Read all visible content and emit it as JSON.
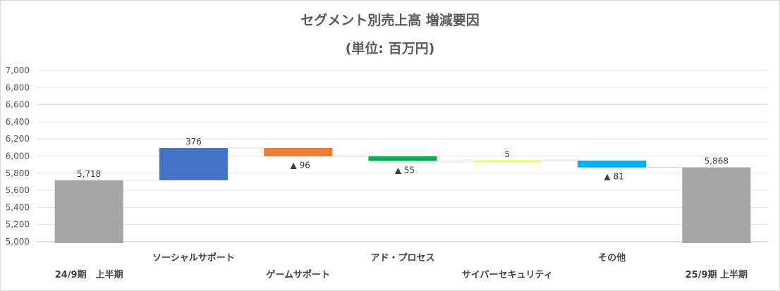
{
  "chart_data": {
    "type": "waterfall",
    "title": [
      "セグメント別売上高 増減要因",
      "(単位: 百万円)"
    ],
    "ylim": [
      5000,
      7000
    ],
    "yticks": [
      5000,
      5200,
      5400,
      5600,
      5800,
      6000,
      6200,
      6400,
      6600,
      6800,
      7000
    ],
    "ytick_labels": [
      "5,000",
      "5,200",
      "5,400",
      "5,600",
      "5,800",
      "6,000",
      "6,200",
      "6,400",
      "6,600",
      "6,800",
      "7,000"
    ],
    "grid": true,
    "categories": [
      "24/9期　上半期",
      "ソーシャルサポート",
      "ゲームサポート",
      "アド・プロセス",
      "サイバーセキュリティ",
      "その他",
      "25/9期  上半期"
    ],
    "bars": [
      {
        "kind": "total",
        "start": 0,
        "end": 5718,
        "color": "#a5a5a5",
        "label": "5,718"
      },
      {
        "kind": "delta",
        "start": 5718,
        "end": 6094,
        "color": "#4472c4",
        "label": "376"
      },
      {
        "kind": "delta",
        "start": 6094,
        "end": 5998,
        "color": "#ed7d31",
        "label": "▲ 96"
      },
      {
        "kind": "delta",
        "start": 5998,
        "end": 5943,
        "color": "#00b050",
        "label": "▲ 55"
      },
      {
        "kind": "delta",
        "start": 5943,
        "end": 5948,
        "color": "#ffff00",
        "label": "5"
      },
      {
        "kind": "delta",
        "start": 5948,
        "end": 5867,
        "color": "#00b0f0",
        "label": "▲ 81"
      },
      {
        "kind": "total",
        "start": 0,
        "end": 5868,
        "color": "#a5a5a5",
        "label": "5,868"
      }
    ]
  }
}
